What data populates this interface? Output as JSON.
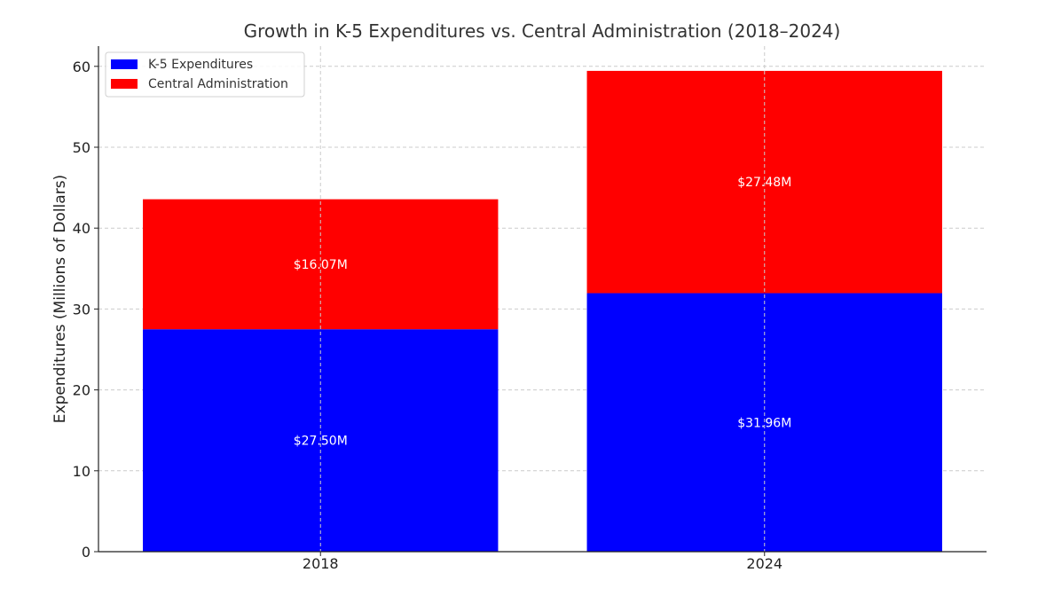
{
  "chart_data": {
    "type": "bar",
    "stacked": true,
    "title": "Growth in K-5 Expenditures vs. Central Administration (2018–2024)",
    "xlabel": "",
    "ylabel": "Expenditures (Millions of Dollars)",
    "categories": [
      "2018",
      "2024"
    ],
    "ylim": [
      0,
      62.5
    ],
    "yticks": [
      0,
      10,
      20,
      30,
      40,
      50,
      60
    ],
    "grid": true,
    "legend_position": "top-left",
    "series": [
      {
        "name": "K-5 Expenditures",
        "color": "#0000ff",
        "values": [
          27.5,
          31.96
        ],
        "labels": [
          "$27.50M",
          "$31.96M"
        ]
      },
      {
        "name": "Central Administration",
        "color": "#ff0000",
        "values": [
          16.07,
          27.48
        ],
        "labels": [
          "$16.07M",
          "$27.48M"
        ]
      }
    ]
  }
}
